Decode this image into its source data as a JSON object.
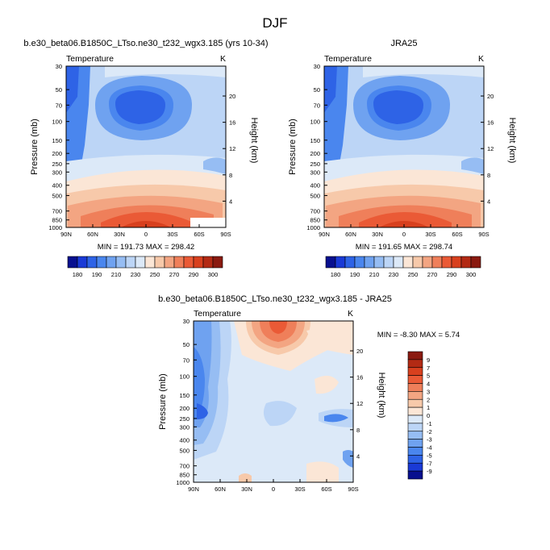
{
  "page_title": "DJF",
  "chart_data": [
    {
      "type": "heatmap",
      "title": "b.e30_beta06.B1850C_LTso.ne30_t232_wgx3.185 (yrs 10-34)",
      "subtitle_left": "Temperature",
      "subtitle_right": "K",
      "xlabel": "",
      "ylabel": "Pressure (mb)",
      "ylabel_right": "Height (km)",
      "x_ticks": [
        "90N",
        "60N",
        "30N",
        "0",
        "30S",
        "60S",
        "90S"
      ],
      "y_ticks": [
        "30",
        "50",
        "70",
        "100",
        "150",
        "200",
        "250",
        "300",
        "400",
        "500",
        "700",
        "850",
        "1000"
      ],
      "y_right_ticks": [
        "20",
        "16",
        "12",
        "8",
        "4"
      ],
      "stats": "MIN = 191.73  MAX = 298.42",
      "colorbar_labels": [
        "180",
        "190",
        "210",
        "230",
        "250",
        "270",
        "290",
        "300"
      ]
    },
    {
      "type": "heatmap",
      "title": "JRA25",
      "subtitle_left": "Temperature",
      "subtitle_right": "K",
      "xlabel": "",
      "ylabel": "Pressure (mb)",
      "ylabel_right": "Height (km)",
      "x_ticks": [
        "90N",
        "60N",
        "30N",
        "0",
        "30S",
        "60S",
        "90S"
      ],
      "y_ticks": [
        "30",
        "50",
        "70",
        "100",
        "150",
        "200",
        "250",
        "300",
        "400",
        "500",
        "700",
        "850",
        "1000"
      ],
      "y_right_ticks": [
        "20",
        "16",
        "12",
        "8",
        "4"
      ],
      "stats": "MIN = 191.65  MAX = 298.74",
      "colorbar_labels": [
        "180",
        "190",
        "210",
        "230",
        "250",
        "270",
        "290",
        "300"
      ]
    },
    {
      "type": "heatmap",
      "title": "b.e30_beta06.B1850C_LTso.ne30_t232_wgx3.185 - JRA25",
      "subtitle_left": "Temperature",
      "subtitle_right": "K",
      "xlabel": "",
      "ylabel": "Pressure (mb)",
      "ylabel_right": "Height (km)",
      "x_ticks": [
        "90N",
        "60N",
        "30N",
        "0",
        "30S",
        "60S",
        "90S"
      ],
      "y_ticks": [
        "30",
        "50",
        "70",
        "100",
        "150",
        "200",
        "250",
        "300",
        "400",
        "500",
        "700",
        "850",
        "1000"
      ],
      "y_right_ticks": [
        "20",
        "16",
        "12",
        "8",
        "4"
      ],
      "stats": "MIN = -8.30  MAX =  5.74",
      "colorbar_labels": [
        "9",
        "7",
        "5",
        "4",
        "3",
        "2",
        "1",
        "0",
        "-1",
        "-2",
        "-3",
        "-4",
        "-5",
        "-7",
        "-9"
      ]
    }
  ],
  "colors": {
    "abs_scale": [
      "#08108f",
      "#1a3ad6",
      "#2e63e6",
      "#4a86ee",
      "#6fa2f0",
      "#96bdf3",
      "#bcd5f6",
      "#dce9f8",
      "#fbe6d6",
      "#f7c9aa",
      "#f3a582",
      "#ef7f5a",
      "#ea5a36",
      "#d8401e",
      "#b32a14",
      "#8a1a10"
    ],
    "diff_scale": [
      "#8a1a10",
      "#b32a14",
      "#d8401e",
      "#ea5a36",
      "#ef7f5a",
      "#f3a582",
      "#f7c9aa",
      "#fbe6d6",
      "#dce9f8",
      "#bcd5f6",
      "#96bdf3",
      "#6fa2f0",
      "#4a86ee",
      "#2e63e6",
      "#1a3ad6",
      "#08108f"
    ]
  }
}
